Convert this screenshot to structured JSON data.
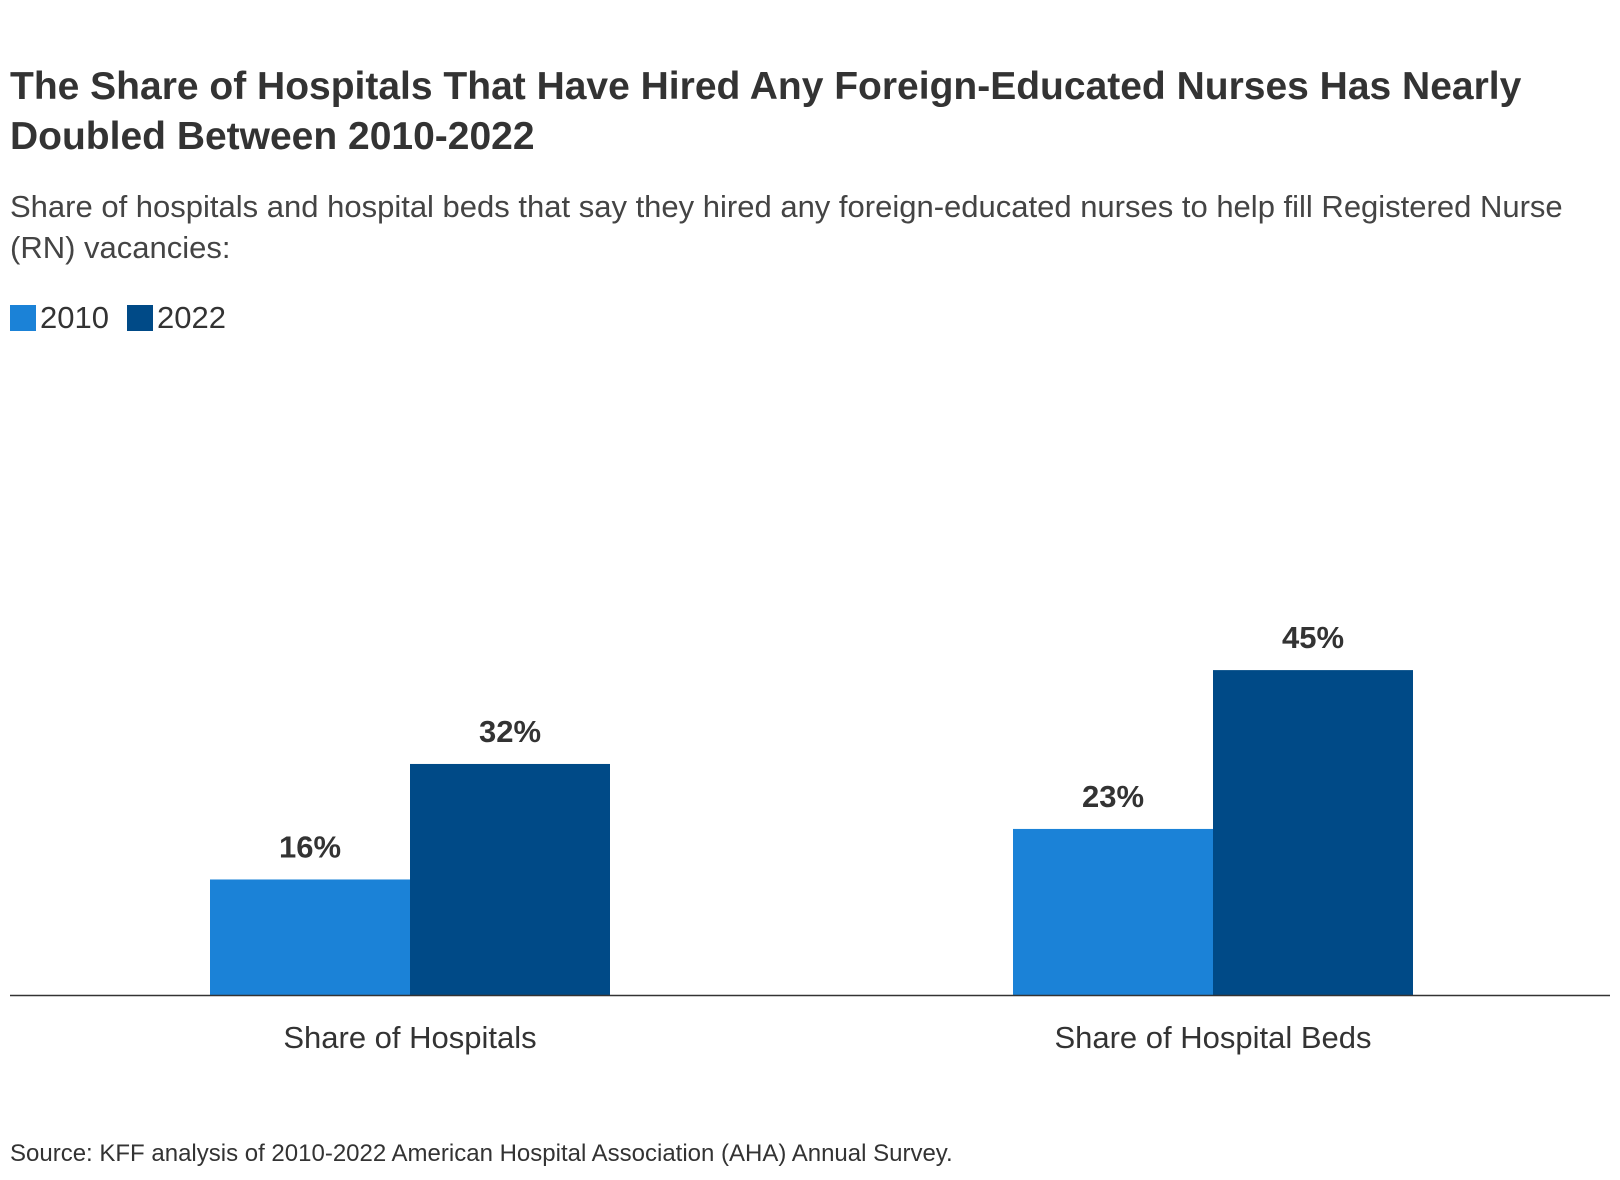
{
  "title": "The Share of Hospitals That Have Hired Any Foreign-Educated Nurses Has Nearly Doubled Between 2010-2022",
  "subtitle": "Share of hospitals and hospital beds that say they hired any foreign-educated nurses to help fill Registered Nurse (RN) vacancies:",
  "legend": [
    {
      "label": "2010",
      "color": "#1b82d7"
    },
    {
      "label": "2022",
      "color": "#004a87"
    }
  ],
  "source": "Source: KFF analysis of 2010-2022 American Hospital Association (AHA) Annual Survey.",
  "chart_data": {
    "type": "bar",
    "categories": [
      "Share of Hospitals",
      "Share of Hospital Beds"
    ],
    "series": [
      {
        "name": "2010",
        "values": [
          16,
          23
        ],
        "labels": [
          "16%",
          "23%"
        ],
        "color": "#1b82d7"
      },
      {
        "name": "2022",
        "values": [
          32,
          45
        ],
        "labels": [
          "32%",
          "45%"
        ],
        "color": "#004a87"
      }
    ],
    "ylim": [
      0,
      60
    ],
    "grid": false,
    "legend_position": "top-left"
  }
}
